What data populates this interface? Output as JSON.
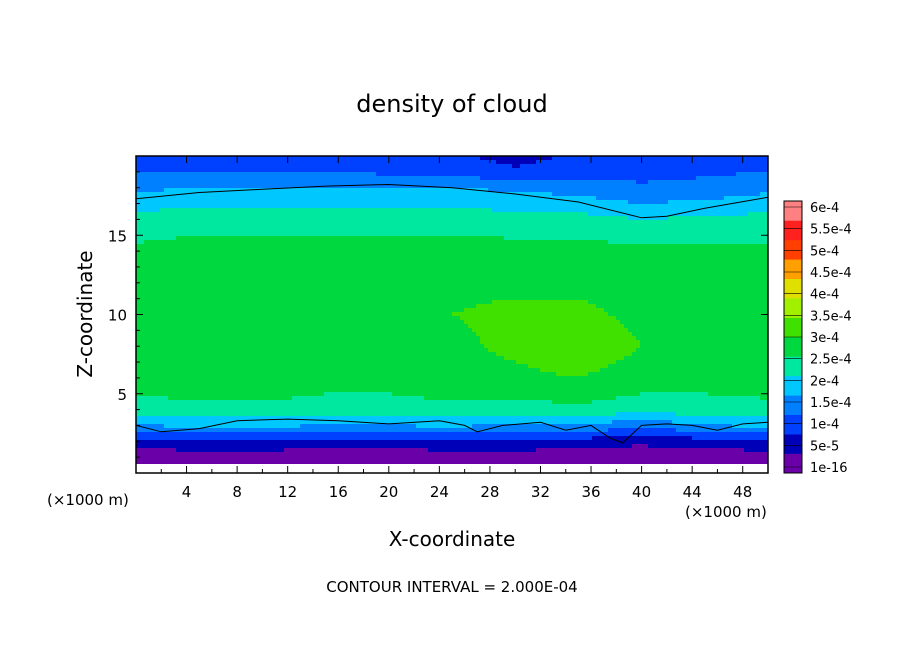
{
  "chart_data": {
    "type": "heatmap",
    "title": "density of cloud",
    "xlabel": "X-coordinate",
    "ylabel": "Z-coordinate",
    "x_unit_left": "(×1000 m)",
    "x_unit_right": "(×1000 m)",
    "footer": "CONTOUR INTERVAL = 2.000E-04",
    "xlim": [
      0,
      50
    ],
    "ylim": [
      0,
      20
    ],
    "x_ticks": [
      "4",
      "8",
      "12",
      "16",
      "20",
      "24",
      "28",
      "32",
      "36",
      "40",
      "44",
      "48"
    ],
    "y_ticks": [
      "5",
      "10",
      "15"
    ],
    "colorbar": {
      "labels": [
        "1e-16",
        "5e-5",
        "1e-4",
        "1.5e-4",
        "2e-4",
        "2.5e-4",
        "3e-4",
        "3.5e-4",
        "4e-4",
        "4.5e-4",
        "5e-4",
        "5.5e-4",
        "6e-4"
      ],
      "values": [
        1e-16,
        5e-05,
        0.0001,
        0.00015,
        0.0002,
        0.00025,
        0.0003,
        0.00035,
        0.0004,
        0.00045,
        0.0005,
        0.00055,
        0.0006
      ],
      "colors": [
        "#6a00a8",
        "#0000b8",
        "#0040ff",
        "#0080ff",
        "#00c8ff",
        "#00e8a0",
        "#00d840",
        "#40e000",
        "#a0f000",
        "#e0e000",
        "#ffa000",
        "#ff4000",
        "#ff2020",
        "#ff8080"
      ]
    },
    "field_x_km": [
      0,
      5,
      10,
      15,
      20,
      25,
      30,
      35,
      40,
      45,
      50
    ],
    "field_z_km": [
      0.5,
      1,
      2,
      3,
      4,
      6,
      8,
      10,
      12,
      14,
      16,
      17,
      18,
      19,
      20
    ],
    "field_values": [
      [
        0.0,
        0.0,
        0.0,
        0.0,
        0.0,
        0.0,
        0.0,
        0.0,
        0.0,
        0.0,
        0.0
      ],
      [
        2e-05,
        2e-05,
        2e-05,
        2e-05,
        2e-05,
        2e-05,
        2e-05,
        2e-05,
        2e-05,
        2e-05,
        2e-05
      ],
      [
        8e-05,
        9e-05,
        9e-05,
        8e-05,
        8e-05,
        9e-05,
        9e-05,
        8e-05,
        6e-05,
        8e-05,
        9e-05
      ],
      [
        0.0002,
        0.00021,
        0.00021,
        0.0002,
        0.0002,
        0.00021,
        0.00019,
        0.0002,
        0.00016,
        0.0002,
        0.00021
      ],
      [
        0.00028,
        0.00029,
        0.00029,
        0.00028,
        0.00028,
        0.00029,
        0.00028,
        0.00029,
        0.00027,
        0.00028,
        0.00029
      ],
      [
        0.00032,
        0.00033,
        0.00033,
        0.00032,
        0.00032,
        0.00033,
        0.00034,
        0.00035,
        0.00033,
        0.00032,
        0.00032
      ],
      [
        0.00034,
        0.00035,
        0.00034,
        0.00033,
        0.00033,
        0.00034,
        0.00036,
        0.00038,
        0.00035,
        0.00033,
        0.00033
      ],
      [
        0.00034,
        0.00035,
        0.00034,
        0.00034,
        0.00034,
        0.00035,
        0.00036,
        0.00036,
        0.00034,
        0.00033,
        0.00034
      ],
      [
        0.00033,
        0.00034,
        0.00034,
        0.00034,
        0.00034,
        0.00034,
        0.00034,
        0.00034,
        0.00033,
        0.00033,
        0.00033
      ],
      [
        0.00031,
        0.00032,
        0.00032,
        0.00032,
        0.00032,
        0.00032,
        0.00032,
        0.00032,
        0.00031,
        0.00031,
        0.00031
      ],
      [
        0.00027,
        0.00028,
        0.00028,
        0.00028,
        0.00028,
        0.00028,
        0.00027,
        0.00027,
        0.00025,
        0.00026,
        0.00027
      ],
      [
        0.00023,
        0.00024,
        0.00024,
        0.00024,
        0.00024,
        0.00024,
        0.00023,
        0.00022,
        0.0002,
        0.00021,
        0.00022
      ],
      [
        0.00019,
        0.0002,
        0.0002,
        0.0002,
        0.0002,
        0.0002,
        0.00019,
        0.00018,
        0.00016,
        0.00017,
        0.00019
      ],
      [
        0.00015,
        0.00015,
        0.00015,
        0.00015,
        0.00014,
        0.00013,
        0.00011,
        0.00013,
        0.00013,
        0.00014,
        0.00015
      ],
      [
        0.00014,
        0.00014,
        0.00014,
        0.00014,
        0.00012,
        0.00011,
        8e-05,
        0.00011,
        0.00013,
        0.00014,
        0.00014
      ]
    ],
    "contour_lines": [
      {
        "level": 0.0002,
        "points": [
          [
            0,
            17.3
          ],
          [
            5,
            17.7
          ],
          [
            10,
            17.9
          ],
          [
            15,
            18.1
          ],
          [
            20,
            18.2
          ],
          [
            25,
            18.0
          ],
          [
            30,
            17.6
          ],
          [
            35,
            17.1
          ],
          [
            40,
            16.1
          ],
          [
            42,
            16.2
          ],
          [
            45,
            16.7
          ],
          [
            50,
            17.4
          ]
        ]
      },
      {
        "level": 0.0002,
        "points": [
          [
            0,
            3.0
          ],
          [
            2,
            2.6
          ],
          [
            5,
            2.8
          ],
          [
            8,
            3.3
          ],
          [
            12,
            3.4
          ],
          [
            16,
            3.3
          ],
          [
            20,
            3.1
          ],
          [
            24,
            3.3
          ],
          [
            26,
            3.0
          ],
          [
            27,
            2.6
          ],
          [
            29,
            3.0
          ],
          [
            32,
            3.2
          ],
          [
            34,
            2.7
          ],
          [
            36,
            3.0
          ],
          [
            37.5,
            2.2
          ],
          [
            38.5,
            1.9
          ],
          [
            40,
            3.0
          ],
          [
            42,
            3.1
          ],
          [
            44,
            3.0
          ],
          [
            46,
            2.7
          ],
          [
            48,
            3.1
          ],
          [
            50,
            3.2
          ]
        ]
      }
    ]
  }
}
